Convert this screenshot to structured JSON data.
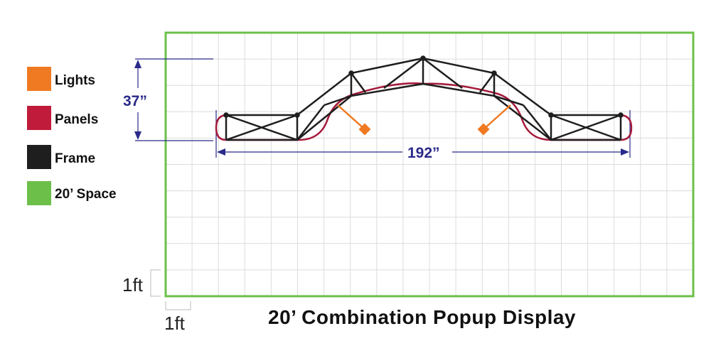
{
  "title": "20’ Combination Popup Display",
  "legend": [
    {
      "label": "Lights",
      "color": "#f07a22",
      "icon": "lights-swatch"
    },
    {
      "label": "Panels",
      "color": "#c01b3a",
      "icon": "panels-swatch"
    },
    {
      "label": "Frame",
      "color": "#1e1e1e",
      "icon": "frame-swatch"
    },
    {
      "label": "20’ Space",
      "color": "#6cc04a",
      "icon": "space-swatch"
    }
  ],
  "dimensions": {
    "depth": "37”",
    "width": "192”"
  },
  "scale": {
    "vertical": "1ft",
    "horizontal": "1ft"
  },
  "colors": {
    "space_border": "#6cc04a",
    "grid": "#dcdcdc",
    "frame": "#1e1e1e",
    "panel": "#a5193a",
    "light": "#f07a22",
    "dimension": "#2a2a8a"
  }
}
